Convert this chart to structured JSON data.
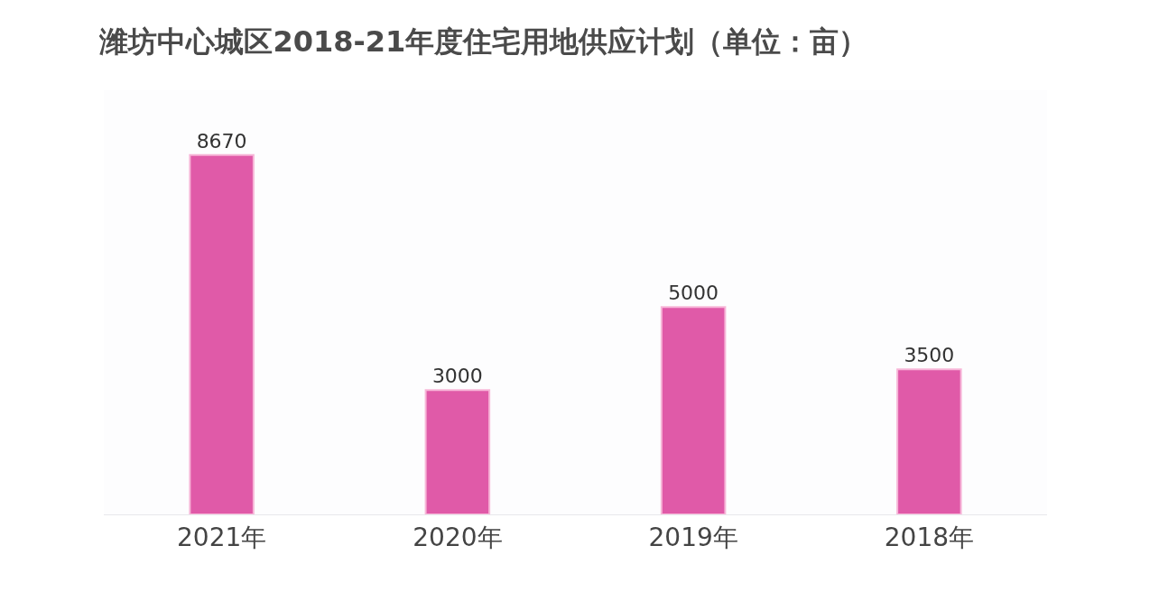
{
  "chart_data": {
    "type": "bar",
    "title": "潍坊中心城区2018-21年度住宅用地供应计划（单位：亩）",
    "categories": [
      "2021年",
      "2020年",
      "2019年",
      "2018年"
    ],
    "values": [
      8670,
      3000,
      5000,
      3500
    ],
    "color": "#e05aa8",
    "data_labels": true
  }
}
